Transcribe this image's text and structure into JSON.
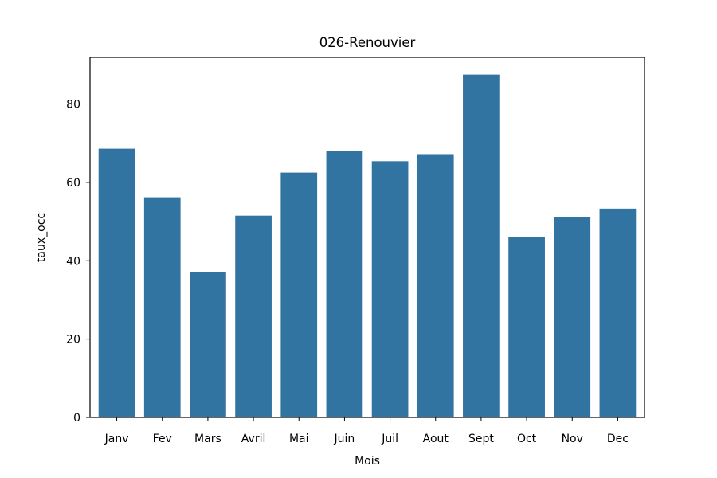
{
  "chart_data": {
    "type": "bar",
    "title": "026-Renouvier",
    "xlabel": "Mois",
    "ylabel": "taux_occ",
    "categories": [
      "Janv",
      "Fev",
      "Mars",
      "Avril",
      "Mai",
      "Juin",
      "Juil",
      "Aout",
      "Sept",
      "Oct",
      "Nov",
      "Dec"
    ],
    "values": [
      68.6,
      56.2,
      37.1,
      51.5,
      62.5,
      68.0,
      65.4,
      67.2,
      87.5,
      46.1,
      51.1,
      53.3
    ],
    "ylim": [
      0,
      91.9
    ],
    "yticks": [
      0,
      20,
      40,
      60,
      80
    ],
    "bar_color": "#3274a1",
    "grid": false,
    "legend": "none"
  }
}
